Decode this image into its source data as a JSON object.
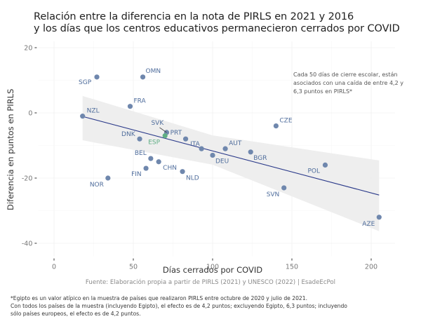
{
  "title": {
    "line1": "Relación entre la diferencia en la nota de PIRLS en 2021 y 2016",
    "line2": "y los días que los centros educativos permanecieron cerrados por COVID"
  },
  "annotation": {
    "line1": "Cada 50 días de cierre escolar, están",
    "line2": "asociados con una caída de entre 4,2 y",
    "line3": "6,3 puntos en PIRLS*"
  },
  "source": "Fuente: Elaboración propia a partir de PIRLS (2021) y UNESCO (2022) | EsadeEcPol",
  "footnote": {
    "line1": "*Egipto es un valor atípico en la muestra de países que realizaron PIRLS entre octubre de 2020 y julio de 2021.",
    "line2": " Con todos los países de la muestra (incluyendo Egipto), el efecto es de 4,2 puntos; excluyendo Egipto, 6,3 puntos; incluyendo",
    "line3": " sólo países europeos, el efecto es de 4,2 puntos."
  },
  "colors": {
    "point": "#6f87ad",
    "highlight": "#5fae84",
    "label": "#4f6d9c",
    "line": "#2b3a8a",
    "ribbon": "#ececec"
  },
  "chart_data": {
    "type": "scatter",
    "xlabel": "Días cerrados por COVID",
    "ylabel": "Diferencia en puntos en PIRLS",
    "xlim": [
      -10,
      215
    ],
    "ylim": [
      -44,
      22
    ],
    "xticks": [
      0,
      50,
      100,
      150,
      200
    ],
    "yticks": [
      20,
      0,
      -20,
      -40
    ],
    "grid": true,
    "points": [
      {
        "label": "SGP",
        "x": 27,
        "y": 11
      },
      {
        "label": "OMN",
        "x": 56,
        "y": 11
      },
      {
        "label": "FRA",
        "x": 48,
        "y": 2
      },
      {
        "label": "NZL",
        "x": 18,
        "y": -1
      },
      {
        "label": "SVK",
        "x": 71,
        "y": -6
      },
      {
        "label": "ESP",
        "x": 70,
        "y": -7,
        "highlight": true
      },
      {
        "label": "DNK",
        "x": 54,
        "y": -8
      },
      {
        "label": "PRT",
        "x": 83,
        "y": -8
      },
      {
        "label": "ITA",
        "x": 93,
        "y": -11
      },
      {
        "label": "AUT",
        "x": 108,
        "y": -11
      },
      {
        "label": "DEU",
        "x": 100,
        "y": -13
      },
      {
        "label": "BGR",
        "x": 124,
        "y": -12
      },
      {
        "label": "CZE",
        "x": 140,
        "y": -4
      },
      {
        "label": "SVN",
        "x": 145,
        "y": -23
      },
      {
        "label": "POL",
        "x": 171,
        "y": -16
      },
      {
        "label": "AZE",
        "x": 205,
        "y": -32
      },
      {
        "label": "BEL",
        "x": 61,
        "y": -14
      },
      {
        "label": "CHN",
        "x": 66,
        "y": -15
      },
      {
        "label": "FIN",
        "x": 58,
        "y": -17
      },
      {
        "label": "NLD",
        "x": 81,
        "y": -18
      },
      {
        "label": "NOR",
        "x": 34,
        "y": -20
      }
    ],
    "regression": {
      "x": [
        18,
        205
      ],
      "y": [
        -1.1,
        -25.2
      ]
    },
    "confidence_band": {
      "x": [
        18,
        100,
        205
      ],
      "upper": [
        5.2,
        -6.9,
        -14.6
      ],
      "lower": [
        -8.4,
        -15.9,
        -36.3
      ]
    }
  }
}
